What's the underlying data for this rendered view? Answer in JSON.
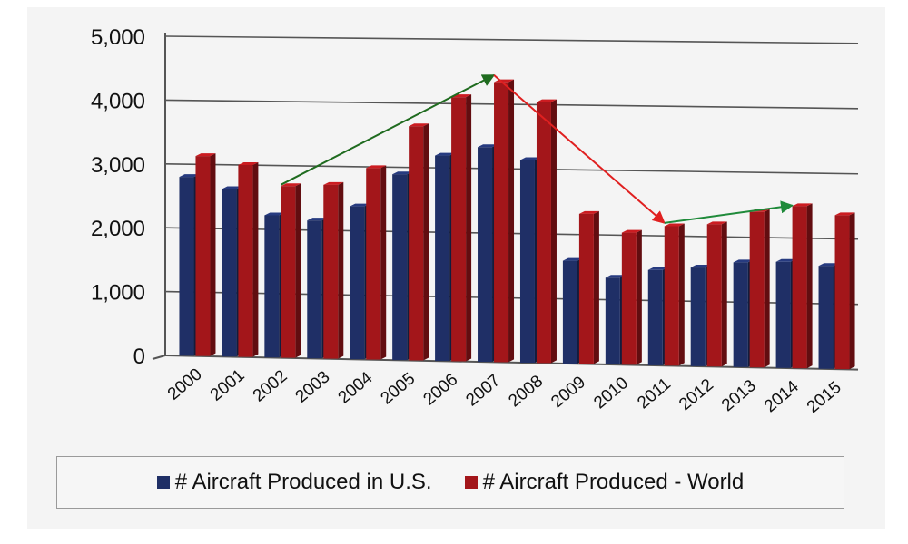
{
  "chart_data": {
    "type": "bar",
    "categories": [
      "2000",
      "2001",
      "2002",
      "2003",
      "2004",
      "2005",
      "2006",
      "2007",
      "2008",
      "2009",
      "2010",
      "2011",
      "2012",
      "2013",
      "2014",
      "2015"
    ],
    "series": [
      {
        "name": "# Aircraft Produced in U.S.",
        "color": "#1f2f66",
        "values": [
          2800,
          2620,
          2220,
          2150,
          2380,
          2890,
          3190,
          3330,
          3140,
          1590,
          1340,
          1470,
          1520,
          1610,
          1630,
          1580
        ]
      },
      {
        "name": "# Aircraft Produced - World",
        "color": "#a3161a",
        "values": [
          3130,
          3000,
          2680,
          2710,
          2980,
          3640,
          4100,
          4340,
          4040,
          2320,
          2040,
          2150,
          2190,
          2390,
          2490,
          2360
        ]
      }
    ],
    "ylim": [
      0,
      5000
    ],
    "yticks": [
      "0",
      "1,000",
      "2,000",
      "3,000",
      "4,000",
      "5,000"
    ],
    "grid": true,
    "legend_position": "bottom",
    "annotations": [
      {
        "type": "arrow",
        "color": "#1f6b1f",
        "from": {
          "x": "2002",
          "y": 2700
        },
        "to": {
          "x": "2007",
          "y": 4450
        }
      },
      {
        "type": "arrow",
        "color": "#e02020",
        "from": {
          "x": "2007",
          "y": 4450
        },
        "to": {
          "x": "2011",
          "y": 2200
        }
      },
      {
        "type": "arrow",
        "color": "#1f8a3a",
        "from": {
          "x": "2011",
          "y": 2200
        },
        "to": {
          "x": "2014",
          "y": 2500
        }
      }
    ]
  }
}
